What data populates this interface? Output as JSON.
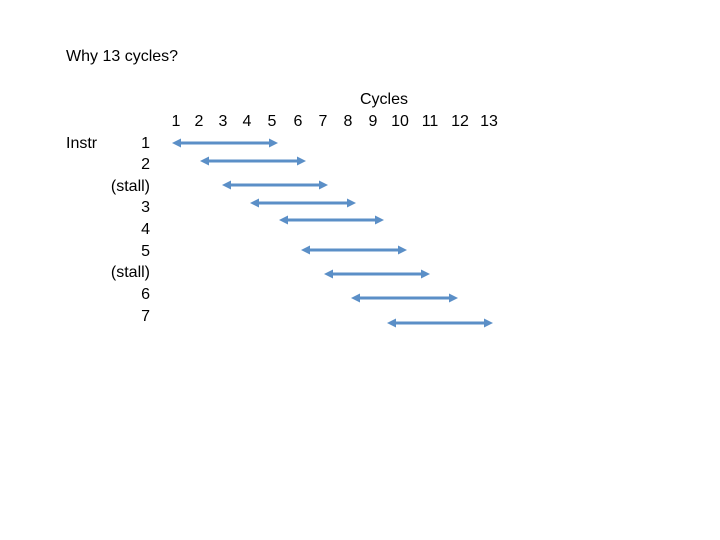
{
  "title": "Why 13 cycles?",
  "cycles_label": "Cycles",
  "cycle_numbers": [
    "1",
    "2",
    "3",
    "4",
    "5",
    "6",
    "7",
    "8",
    "9",
    "10",
    "11",
    "12",
    "13"
  ],
  "instr_label": "Instr",
  "rows": [
    {
      "label": "1"
    },
    {
      "label": "2"
    },
    {
      "label": "(stall)"
    },
    {
      "label": "3"
    },
    {
      "label": "4"
    },
    {
      "label": "5"
    },
    {
      "label": "(stall)"
    },
    {
      "label": "6"
    },
    {
      "label": "7"
    }
  ],
  "arrow_color": "#5b8fc7"
}
